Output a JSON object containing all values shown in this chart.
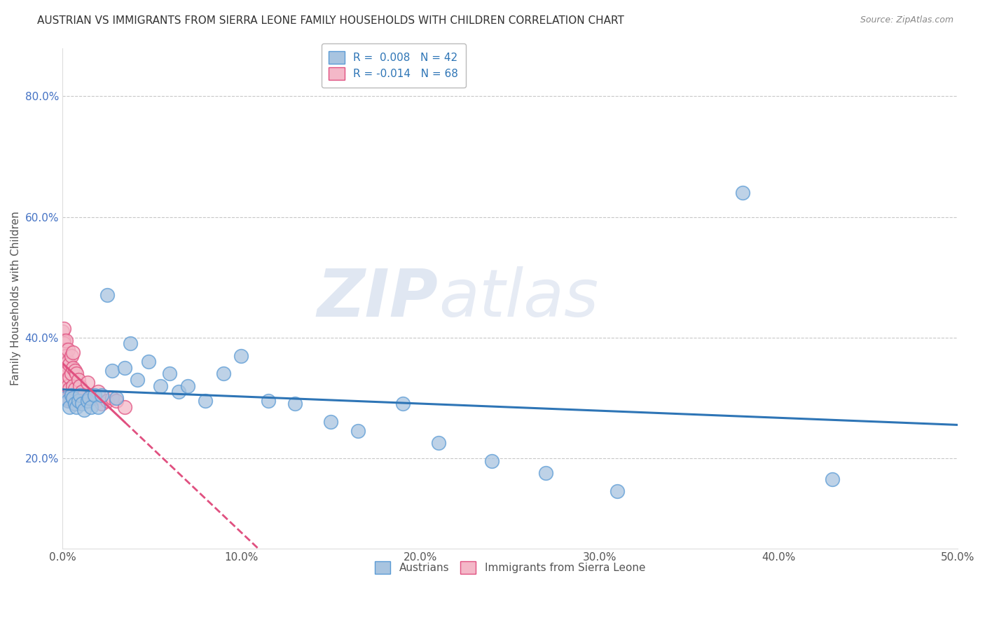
{
  "title": "AUSTRIAN VS IMMIGRANTS FROM SIERRA LEONE FAMILY HOUSEHOLDS WITH CHILDREN CORRELATION CHART",
  "source": "Source: ZipAtlas.com",
  "ylabel": "Family Households with Children",
  "xlim": [
    0.0,
    0.5
  ],
  "ylim": [
    0.05,
    0.88
  ],
  "xticks": [
    0.0,
    0.1,
    0.2,
    0.3,
    0.4,
    0.5
  ],
  "yticks": [
    0.2,
    0.4,
    0.6,
    0.8
  ],
  "ytick_labels": [
    "20.0%",
    "40.0%",
    "60.0%",
    "80.0%"
  ],
  "xtick_labels": [
    "0.0%",
    "10.0%",
    "20.0%",
    "30.0%",
    "40.0%",
    "50.0%"
  ],
  "legend_r_austrians": "R =  0.008",
  "legend_n_austrians": "N = 42",
  "legend_r_sierra_leone": "R = -0.014",
  "legend_n_sierra_leone": "N = 68",
  "austrian_color": "#a8c4e0",
  "austrian_edge_color": "#5b9bd5",
  "sierra_leone_color": "#f4b8c8",
  "sierra_leone_edge_color": "#e05080",
  "trend_austrian_color": "#2e75b6",
  "trend_sierra_leone_color": "#e05080",
  "grid_color": "#c8c8c8",
  "background_color": "#ffffff",
  "austrians_x": [
    0.002,
    0.003,
    0.004,
    0.005,
    0.006,
    0.007,
    0.008,
    0.009,
    0.01,
    0.011,
    0.012,
    0.014,
    0.015,
    0.016,
    0.018,
    0.02,
    0.022,
    0.025,
    0.028,
    0.03,
    0.035,
    0.038,
    0.042,
    0.048,
    0.055,
    0.06,
    0.065,
    0.07,
    0.08,
    0.09,
    0.1,
    0.115,
    0.13,
    0.15,
    0.165,
    0.19,
    0.21,
    0.24,
    0.27,
    0.31,
    0.38,
    0.43
  ],
  "austrians_y": [
    0.3,
    0.295,
    0.285,
    0.305,
    0.3,
    0.29,
    0.285,
    0.295,
    0.305,
    0.29,
    0.28,
    0.295,
    0.3,
    0.285,
    0.305,
    0.285,
    0.305,
    0.47,
    0.345,
    0.3,
    0.35,
    0.39,
    0.33,
    0.36,
    0.32,
    0.34,
    0.31,
    0.32,
    0.295,
    0.34,
    0.37,
    0.295,
    0.29,
    0.26,
    0.245,
    0.29,
    0.225,
    0.195,
    0.175,
    0.145,
    0.64,
    0.165
  ],
  "sierra_leone_x": [
    0.0,
    0.0,
    0.0,
    0.0,
    0.0,
    0.0,
    0.0,
    0.0,
    0.0,
    0.0,
    0.001,
    0.001,
    0.001,
    0.001,
    0.001,
    0.001,
    0.001,
    0.001,
    0.001,
    0.001,
    0.001,
    0.001,
    0.002,
    0.002,
    0.002,
    0.002,
    0.002,
    0.002,
    0.002,
    0.002,
    0.002,
    0.002,
    0.003,
    0.003,
    0.003,
    0.003,
    0.003,
    0.003,
    0.004,
    0.004,
    0.004,
    0.004,
    0.005,
    0.005,
    0.005,
    0.006,
    0.006,
    0.006,
    0.007,
    0.007,
    0.007,
    0.008,
    0.008,
    0.009,
    0.01,
    0.01,
    0.011,
    0.012,
    0.013,
    0.014,
    0.016,
    0.018,
    0.02,
    0.022,
    0.025,
    0.028,
    0.03,
    0.035
  ],
  "sierra_leone_y": [
    0.36,
    0.39,
    0.41,
    0.375,
    0.355,
    0.34,
    0.345,
    0.38,
    0.395,
    0.37,
    0.33,
    0.36,
    0.38,
    0.345,
    0.395,
    0.415,
    0.36,
    0.34,
    0.375,
    0.39,
    0.35,
    0.33,
    0.365,
    0.345,
    0.32,
    0.38,
    0.355,
    0.395,
    0.34,
    0.37,
    0.31,
    0.355,
    0.33,
    0.345,
    0.32,
    0.36,
    0.3,
    0.38,
    0.335,
    0.315,
    0.355,
    0.295,
    0.37,
    0.34,
    0.305,
    0.35,
    0.32,
    0.375,
    0.315,
    0.345,
    0.29,
    0.34,
    0.305,
    0.33,
    0.32,
    0.295,
    0.31,
    0.305,
    0.295,
    0.325,
    0.305,
    0.3,
    0.31,
    0.29,
    0.295,
    0.3,
    0.295,
    0.285
  ],
  "watermark_zip": "ZIP",
  "watermark_atlas": "atlas",
  "title_fontsize": 11,
  "axis_label_fontsize": 11,
  "tick_fontsize": 11
}
